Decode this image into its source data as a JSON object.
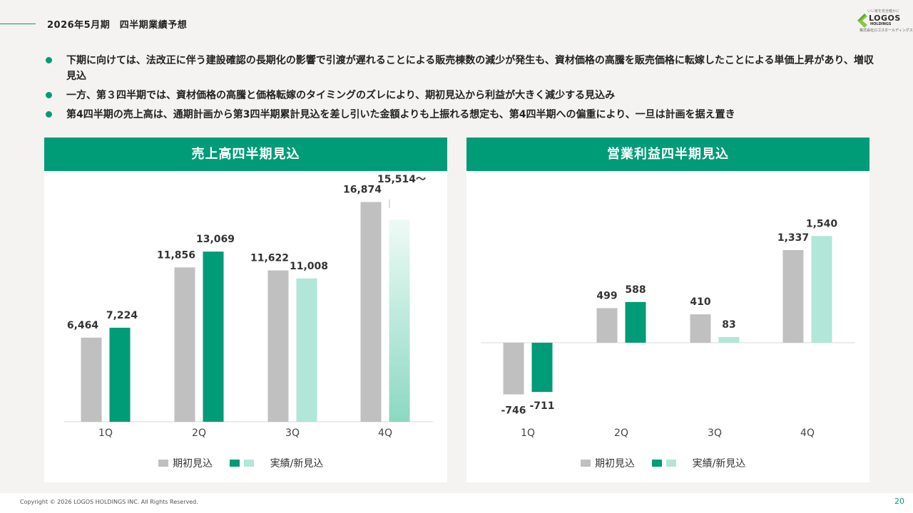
{
  "header": {
    "title": "2026年5月期　四半期業績予想"
  },
  "logo": {
    "tagline": "いい家を安全確かに",
    "name": "LOGOS",
    "sub": "HOLDINGS",
    "corp": "株式会社ロゴスホールディングス"
  },
  "bullets": [
    "下期に向けては、法改正に伴う建設確認の長期化の影響で引渡が遅れることによる販売棟数の減少が発生も、資材価格の高騰を販売価格に転嫁したことによる単価上昇があり、増収見込",
    "一方、第３四半期では、資材価格の高騰と価格転嫁のタイミングのズレにより、期初見込から利益が大きく減少する見込み",
    "第4四半期の売上高は、通期計画から第3四半期累計見込を差し引いた金額よりも上振れる想定も、第4四半期への偏重により、一旦は計画を据え置き"
  ],
  "colors": {
    "accent": "#009b77",
    "initial": "#c0c0c0",
    "actual": "#009b77",
    "forecast": "#b2e6d9",
    "forecast_fade_top": "#eefaf6",
    "forecast_fade_bottom": "#8cd8c1"
  },
  "chart_data": [
    {
      "type": "bar",
      "title": "売上高四半期見込",
      "categories": [
        "1Q",
        "2Q",
        "3Q",
        "4Q"
      ],
      "series": [
        {
          "name": "期初見込",
          "values": [
            6464,
            11856,
            11622,
            16874
          ],
          "labels": [
            "6,464",
            "11,856",
            "11,622",
            "16,874"
          ]
        },
        {
          "name": "実績/新見込",
          "values": [
            7224,
            13069,
            11008,
            15514
          ],
          "labels": [
            "7,224",
            "13,069",
            "11,008",
            "15,514〜"
          ],
          "kinds": [
            "actual",
            "actual",
            "forecast",
            "forecast-gradient"
          ]
        }
      ],
      "ylim": [
        0,
        18600
      ],
      "legend": [
        "期初見込",
        "実績/新見込"
      ],
      "legend_position": "bottom"
    },
    {
      "type": "bar",
      "title": "営業利益四半期見込",
      "categories": [
        "1Q",
        "2Q",
        "3Q",
        "4Q"
      ],
      "series": [
        {
          "name": "期初見込",
          "values": [
            -746,
            499,
            410,
            1337
          ],
          "labels": [
            "-746",
            "499",
            "410",
            "1,337"
          ]
        },
        {
          "name": "実績/新見込",
          "values": [
            -711,
            588,
            83,
            1540
          ],
          "labels": [
            "-711",
            "588",
            "83",
            "1,540"
          ],
          "kinds": [
            "actual",
            "actual",
            "forecast",
            "forecast"
          ]
        }
      ],
      "ylim": [
        -1000,
        1800
      ],
      "legend": [
        "期初見込",
        "実績/新見込"
      ],
      "legend_position": "bottom"
    }
  ],
  "footer": {
    "copyright": "Copyright © 2026 LOGOS HOLDINGS INC. All Rights Reserved.",
    "page": "20"
  }
}
